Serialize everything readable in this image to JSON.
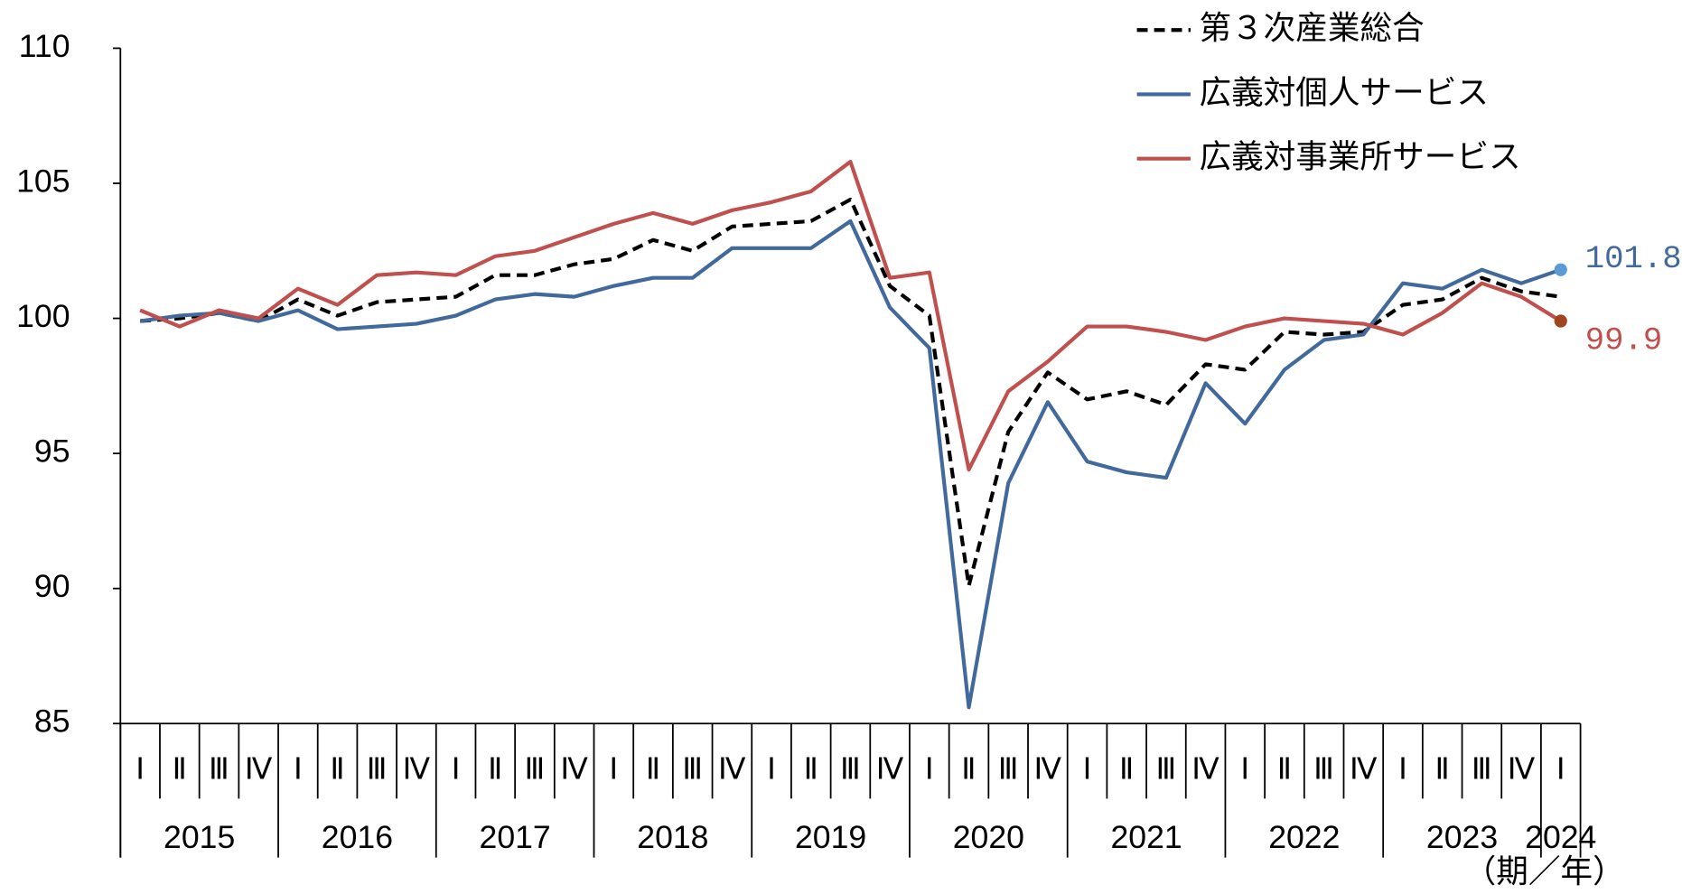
{
  "chart_data": {
    "type": "line",
    "categories": [
      "Ⅰ",
      "Ⅱ",
      "Ⅲ",
      "Ⅳ",
      "Ⅰ",
      "Ⅱ",
      "Ⅲ",
      "Ⅳ",
      "Ⅰ",
      "Ⅱ",
      "Ⅲ",
      "Ⅳ",
      "Ⅰ",
      "Ⅱ",
      "Ⅲ",
      "Ⅳ",
      "Ⅰ",
      "Ⅱ",
      "Ⅲ",
      "Ⅳ",
      "Ⅰ",
      "Ⅱ",
      "Ⅲ",
      "Ⅳ",
      "Ⅰ",
      "Ⅱ",
      "Ⅲ",
      "Ⅳ",
      "Ⅰ",
      "Ⅱ",
      "Ⅲ",
      "Ⅳ",
      "Ⅰ",
      "Ⅱ",
      "Ⅲ",
      "Ⅳ",
      "Ⅰ"
    ],
    "years": [
      "2015",
      "2016",
      "2017",
      "2018",
      "2019",
      "2020",
      "2021",
      "2022",
      "2023",
      "2024"
    ],
    "x_unit": "（期／年）",
    "ylim": [
      85,
      110
    ],
    "yticks": [
      85,
      90,
      95,
      100,
      105,
      110
    ],
    "series": [
      {
        "name": "第３次産業総合",
        "color": "#000000",
        "dash": true,
        "values": [
          99.9,
          100.0,
          100.2,
          99.9,
          100.7,
          100.1,
          100.6,
          100.7,
          100.8,
          101.6,
          101.6,
          102.0,
          102.2,
          102.9,
          102.5,
          103.4,
          103.5,
          103.6,
          104.4,
          101.2,
          100.1,
          90.1,
          95.8,
          98.0,
          97.0,
          97.3,
          96.8,
          98.3,
          98.1,
          99.5,
          99.4,
          99.5,
          100.5,
          100.7,
          101.5,
          101.0,
          100.8
        ]
      },
      {
        "name": "広義対個人サービス",
        "color": "#41699b",
        "end_color": "#5b9bd5",
        "show_end_label": true,
        "values": [
          99.9,
          100.1,
          100.2,
          99.9,
          100.3,
          99.6,
          99.7,
          99.8,
          100.1,
          100.7,
          100.9,
          100.8,
          101.2,
          101.5,
          101.5,
          102.6,
          102.6,
          102.6,
          103.6,
          100.4,
          98.9,
          85.6,
          93.9,
          96.9,
          94.7,
          94.3,
          94.1,
          97.6,
          96.1,
          98.1,
          99.2,
          99.4,
          101.3,
          101.1,
          101.8,
          101.3,
          101.8
        ]
      },
      {
        "name": "広義対事業所サービス",
        "color": "#c0504d",
        "end_color": "#a0461e",
        "show_end_label": true,
        "values": [
          100.3,
          99.7,
          100.3,
          100.0,
          101.1,
          100.5,
          101.6,
          101.7,
          101.6,
          102.3,
          102.5,
          103.0,
          103.5,
          103.9,
          103.5,
          104.0,
          104.3,
          104.7,
          105.8,
          101.5,
          101.7,
          94.4,
          97.3,
          98.4,
          99.7,
          99.7,
          99.5,
          99.2,
          99.7,
          100.0,
          99.9,
          99.8,
          99.4,
          100.2,
          101.3,
          100.8,
          99.9
        ]
      }
    ]
  }
}
